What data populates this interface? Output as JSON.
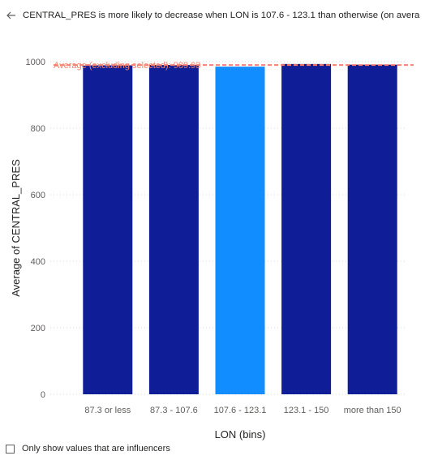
{
  "header": {
    "back_icon": "back-arrow-icon",
    "text": "CENTRAL_PRES is more likely to decrease when LON is 107.6 - 123.1 than otherwise (on average)."
  },
  "footer": {
    "checkbox_checked": false,
    "label": "Only show values that are influencers"
  },
  "colors": {
    "bar_default": "#0f1e96",
    "bar_highlight": "#118dff",
    "average_line": "#f4836f",
    "gridline": "#d8d8d8",
    "tick_text": "#605e5c",
    "axis_title": "#252423"
  },
  "chart_data": {
    "type": "bar",
    "categories": [
      "87.3 or less",
      "87.3 - 107.6",
      "107.6 - 123.1",
      "123.1 - 150",
      "more than 150"
    ],
    "values": [
      989,
      990,
      985,
      993,
      991
    ],
    "highlight_index": 2,
    "xlabel": "LON (bins)",
    "ylabel": "Average of CENTRAL_PRES",
    "ylim": [
      0,
      1000
    ],
    "yticks": [
      0,
      200,
      400,
      600,
      800,
      1000
    ],
    "grid": true,
    "reference_line": {
      "value": 989.93,
      "label": "Average (excluding selected): 989.93"
    }
  }
}
